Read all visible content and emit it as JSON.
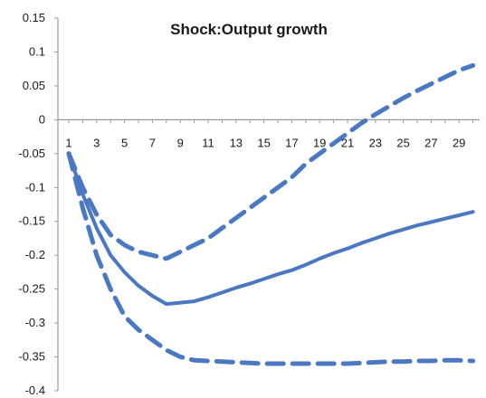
{
  "chart_data": {
    "type": "line",
    "title": "Shock:Output growth",
    "xlabel": "",
    "ylabel": "",
    "x": [
      1,
      2,
      3,
      4,
      5,
      6,
      7,
      8,
      9,
      10,
      11,
      12,
      13,
      14,
      15,
      16,
      17,
      18,
      19,
      20,
      21,
      22,
      23,
      24,
      25,
      26,
      27,
      28,
      29,
      30
    ],
    "x_tick_labels": [
      "1",
      "3",
      "5",
      "7",
      "9",
      "11",
      "13",
      "15",
      "17",
      "19",
      "21",
      "23",
      "25",
      "27",
      "29"
    ],
    "y_tick_labels": [
      "0.15",
      "0.1",
      "0.05",
      "0",
      "-0.05",
      "-0.1",
      "-0.15",
      "-0.2",
      "-0.25",
      "-0.3",
      "-0.35",
      "-0.4"
    ],
    "ylim": [
      -0.4,
      0.15
    ],
    "xlim": [
      1,
      30
    ],
    "grid": false,
    "legend": "none",
    "colors": {
      "series": "#4a78c2",
      "axis": "#9a9a9a"
    },
    "series": [
      {
        "style": "dashed",
        "values": [
          -0.05,
          -0.1,
          -0.14,
          -0.17,
          -0.185,
          -0.195,
          -0.2,
          -0.205,
          -0.195,
          -0.185,
          -0.175,
          -0.16,
          -0.145,
          -0.13,
          -0.115,
          -0.1,
          -0.085,
          -0.065,
          -0.05,
          -0.035,
          -0.02,
          -0.005,
          0.008,
          0.02,
          0.032,
          0.043,
          0.053,
          0.063,
          0.073,
          0.08
        ]
      },
      {
        "style": "solid",
        "values": [
          -0.05,
          -0.11,
          -0.16,
          -0.2,
          -0.225,
          -0.245,
          -0.26,
          -0.272,
          -0.27,
          -0.268,
          -0.262,
          -0.255,
          -0.248,
          -0.242,
          -0.235,
          -0.228,
          -0.222,
          -0.214,
          -0.205,
          -0.197,
          -0.19,
          -0.182,
          -0.175,
          -0.168,
          -0.162,
          -0.156,
          -0.151,
          -0.146,
          -0.141,
          -0.136
        ]
      },
      {
        "style": "dashed",
        "values": [
          -0.05,
          -0.13,
          -0.2,
          -0.25,
          -0.29,
          -0.31,
          -0.325,
          -0.34,
          -0.35,
          -0.355,
          -0.356,
          -0.357,
          -0.358,
          -0.359,
          -0.36,
          -0.36,
          -0.36,
          -0.36,
          -0.36,
          -0.36,
          -0.36,
          -0.359,
          -0.358,
          -0.357,
          -0.357,
          -0.356,
          -0.356,
          -0.355,
          -0.355,
          -0.356
        ]
      }
    ]
  }
}
